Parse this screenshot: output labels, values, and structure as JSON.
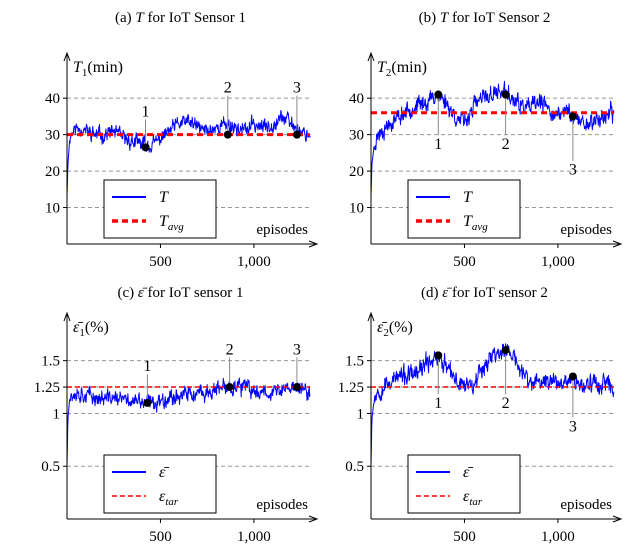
{
  "chart_data": [
    {
      "type": "line",
      "caption": "(a) T for IoT Sensor 1",
      "caption_prefix": "(a)",
      "caption_symbol": "T",
      "caption_suffix": "for IoT Sensor 1",
      "ylabel": "T1(min)",
      "ylabel_sym": "T",
      "ylabel_sub": "1",
      "ylabel_unit": "(min)",
      "xlabel": "episodes",
      "xlim": [
        0,
        1300
      ],
      "ylim": [
        0,
        48
      ],
      "xticks": [
        500,
        1000
      ],
      "xtick_labels": [
        "500",
        "1,000"
      ],
      "yticks": [
        10,
        20,
        30,
        40
      ],
      "ytick_labels": [
        "10",
        "20",
        "30",
        "40"
      ],
      "grid": "horizontal dashed",
      "legend_position": "bottom-left",
      "series": [
        {
          "name": "T",
          "color": "#0000ff",
          "style": "solid",
          "base": [
            [
              0,
              13
            ],
            [
              5,
              22
            ],
            [
              15,
              29
            ],
            [
              30,
              31
            ],
            [
              60,
              32
            ],
            [
              100,
              31
            ],
            [
              150,
              30
            ],
            [
              200,
              30
            ],
            [
              250,
              31
            ],
            [
              300,
              29
            ],
            [
              350,
              28
            ],
            [
              400,
              27.5
            ],
            [
              450,
              27
            ],
            [
              500,
              29
            ],
            [
              550,
              31
            ],
            [
              600,
              33
            ],
            [
              650,
              33.5
            ],
            [
              700,
              32
            ],
            [
              750,
              31
            ],
            [
              800,
              32
            ],
            [
              850,
              33
            ],
            [
              900,
              32
            ],
            [
              950,
              31
            ],
            [
              1000,
              33
            ],
            [
              1050,
              32
            ],
            [
              1100,
              33
            ],
            [
              1150,
              35
            ],
            [
              1200,
              33
            ],
            [
              1250,
              31
            ],
            [
              1300,
              30
            ]
          ],
          "amplitude": 3.0,
          "seed": 11
        },
        {
          "name": "Tavg",
          "name_sym": "T",
          "name_sub": "avg",
          "color": "#ff0000",
          "style": "dashed",
          "values": [
            [
              0,
              30
            ],
            [
              1300,
              30
            ]
          ]
        }
      ],
      "markers": [
        {
          "label": "1",
          "x": 420,
          "y": 26.5,
          "label_y": 35
        },
        {
          "label": "2",
          "x": 860,
          "y": 30,
          "label_y": 41.5
        },
        {
          "label": "3",
          "x": 1230,
          "y": 30,
          "label_y": 41.5
        }
      ]
    },
    {
      "type": "line",
      "caption": "(b) T for IoT Sensor 2",
      "caption_prefix": "(b)",
      "caption_symbol": "T",
      "caption_suffix": "for IoT Sensor 2",
      "ylabel": "T2(min)",
      "ylabel_sym": "T",
      "ylabel_sub": "2",
      "ylabel_unit": "(min)",
      "xlabel": "episodes",
      "xlim": [
        0,
        1300
      ],
      "ylim": [
        0,
        48
      ],
      "xticks": [
        500,
        1000
      ],
      "xtick_labels": [
        "500",
        "1,000"
      ],
      "yticks": [
        10,
        20,
        30,
        40
      ],
      "ytick_labels": [
        "10",
        "20",
        "30",
        "40"
      ],
      "grid": "horizontal dashed",
      "legend_position": "bottom-left",
      "series": [
        {
          "name": "T",
          "color": "#0000ff",
          "style": "solid",
          "base": [
            [
              0,
              13
            ],
            [
              5,
              22
            ],
            [
              20,
              28
            ],
            [
              50,
              31
            ],
            [
              100,
              33
            ],
            [
              150,
              35
            ],
            [
              200,
              37
            ],
            [
              250,
              38
            ],
            [
              300,
              39
            ],
            [
              350,
              41
            ],
            [
              400,
              39
            ],
            [
              450,
              35
            ],
            [
              500,
              33
            ],
            [
              550,
              38
            ],
            [
              600,
              40
            ],
            [
              650,
              41
            ],
            [
              700,
              42
            ],
            [
              750,
              40
            ],
            [
              800,
              38
            ],
            [
              850,
              37
            ],
            [
              900,
              39
            ],
            [
              950,
              37
            ],
            [
              1000,
              35
            ],
            [
              1050,
              37
            ],
            [
              1100,
              34
            ],
            [
              1150,
              33
            ],
            [
              1200,
              34
            ],
            [
              1250,
              35
            ],
            [
              1300,
              36
            ]
          ],
          "amplitude": 3.4,
          "seed": 23
        },
        {
          "name": "Tavg",
          "name_sym": "T",
          "name_sub": "avg",
          "color": "#ff0000",
          "style": "dashed",
          "values": [
            [
              0,
              36
            ],
            [
              1300,
              36
            ]
          ]
        }
      ],
      "markers": [
        {
          "label": "1",
          "x": 360,
          "y": 41,
          "label_y": 26
        },
        {
          "label": "2",
          "x": 720,
          "y": 41,
          "label_y": 26
        },
        {
          "label": "3",
          "x": 1080,
          "y": 35,
          "label_y": 19
        }
      ]
    },
    {
      "type": "line",
      "caption": "(c) ε̄ for IoT sensor 1",
      "caption_prefix": "(c)",
      "caption_symbol": "ε̄",
      "caption_suffix": "for IoT sensor 1",
      "ylabel": "ε̄1(%)",
      "ylabel_sym": "ε̄",
      "ylabel_sub": "1",
      "ylabel_unit": "(%)",
      "xlabel": "episodes",
      "xlim": [
        0,
        1300
      ],
      "ylim": [
        0,
        1.8
      ],
      "xticks": [
        500,
        1000
      ],
      "xtick_labels": [
        "500",
        "1,000"
      ],
      "yticks": [
        0.5,
        1,
        1.25,
        1.5
      ],
      "ytick_labels": [
        "0.5",
        "1",
        "1.25",
        "1.5"
      ],
      "grid": "horizontal dashed",
      "legend_position": "bottom-left",
      "series": [
        {
          "name": "ε̄",
          "color": "#0000ff",
          "style": "solid",
          "base": [
            [
              0,
              0.5
            ],
            [
              5,
              0.95
            ],
            [
              15,
              1.15
            ],
            [
              40,
              1.2
            ],
            [
              100,
              1.18
            ],
            [
              150,
              1.15
            ],
            [
              200,
              1.14
            ],
            [
              250,
              1.15
            ],
            [
              300,
              1.13
            ],
            [
              350,
              1.12
            ],
            [
              400,
              1.1
            ],
            [
              450,
              1.1
            ],
            [
              500,
              1.12
            ],
            [
              550,
              1.16
            ],
            [
              600,
              1.17
            ],
            [
              650,
              1.18
            ],
            [
              700,
              1.17
            ],
            [
              750,
              1.2
            ],
            [
              800,
              1.22
            ],
            [
              850,
              1.24
            ],
            [
              900,
              1.26
            ],
            [
              950,
              1.25
            ],
            [
              1000,
              1.2
            ],
            [
              1050,
              1.22
            ],
            [
              1100,
              1.2
            ],
            [
              1150,
              1.22
            ],
            [
              1200,
              1.25
            ],
            [
              1250,
              1.24
            ],
            [
              1300,
              1.18
            ]
          ],
          "amplitude": 0.11,
          "seed": 37
        },
        {
          "name": "εtar",
          "name_sym": "ε",
          "name_sub": "tar",
          "color": "#ff0000",
          "style": "dashed",
          "values": [
            [
              0,
              1.25
            ],
            [
              1300,
              1.25
            ]
          ]
        }
      ],
      "markers": [
        {
          "label": "1",
          "x": 430,
          "y": 1.1,
          "label_y": 1.4
        },
        {
          "label": "2",
          "x": 870,
          "y": 1.25,
          "label_y": 1.56
        },
        {
          "label": "3",
          "x": 1230,
          "y": 1.25,
          "label_y": 1.56
        }
      ]
    },
    {
      "type": "line",
      "caption": "(d) ε̄ for IoT sensor 2",
      "caption_prefix": "(d)",
      "caption_symbol": "ε̄",
      "caption_suffix": "for IoT sensor 2",
      "ylabel": "ε̄2(%)",
      "ylabel_sym": "ε̄",
      "ylabel_sub": "2",
      "ylabel_unit": "(%)",
      "xlabel": "episodes",
      "xlim": [
        0,
        1300
      ],
      "ylim": [
        0,
        1.8
      ],
      "xticks": [
        500,
        1000
      ],
      "xtick_labels": [
        "500",
        "1,000"
      ],
      "yticks": [
        0.5,
        1,
        1.25,
        1.5
      ],
      "ytick_labels": [
        "0.5",
        "1",
        "1.25",
        "1.5"
      ],
      "grid": "horizontal dashed",
      "legend_position": "bottom-left",
      "series": [
        {
          "name": "ε̄",
          "color": "#0000ff",
          "style": "solid",
          "base": [
            [
              0,
              0.5
            ],
            [
              5,
              0.95
            ],
            [
              20,
              1.18
            ],
            [
              60,
              1.25
            ],
            [
              100,
              1.3
            ],
            [
              150,
              1.35
            ],
            [
              200,
              1.35
            ],
            [
              250,
              1.38
            ],
            [
              300,
              1.48
            ],
            [
              350,
              1.55
            ],
            [
              400,
              1.45
            ],
            [
              450,
              1.3
            ],
            [
              500,
              1.28
            ],
            [
              550,
              1.3
            ],
            [
              600,
              1.45
            ],
            [
              650,
              1.55
            ],
            [
              700,
              1.6
            ],
            [
              750,
              1.58
            ],
            [
              800,
              1.4
            ],
            [
              850,
              1.3
            ],
            [
              900,
              1.28
            ],
            [
              950,
              1.32
            ],
            [
              1000,
              1.3
            ],
            [
              1050,
              1.35
            ],
            [
              1100,
              1.3
            ],
            [
              1150,
              1.25
            ],
            [
              1200,
              1.3
            ],
            [
              1250,
              1.28
            ],
            [
              1300,
              1.25
            ]
          ],
          "amplitude": 0.13,
          "seed": 53
        },
        {
          "name": "εtar",
          "name_sym": "ε",
          "name_sub": "tar",
          "color": "#ff0000",
          "style": "dashed",
          "values": [
            [
              0,
              1.25
            ],
            [
              1300,
              1.25
            ]
          ]
        }
      ],
      "markers": [
        {
          "label": "1",
          "x": 360,
          "y": 1.55,
          "label_y": 1.05
        },
        {
          "label": "2",
          "x": 720,
          "y": 1.6,
          "label_y": 1.05
        },
        {
          "label": "3",
          "x": 1080,
          "y": 1.35,
          "label_y": 0.83
        }
      ]
    }
  ]
}
